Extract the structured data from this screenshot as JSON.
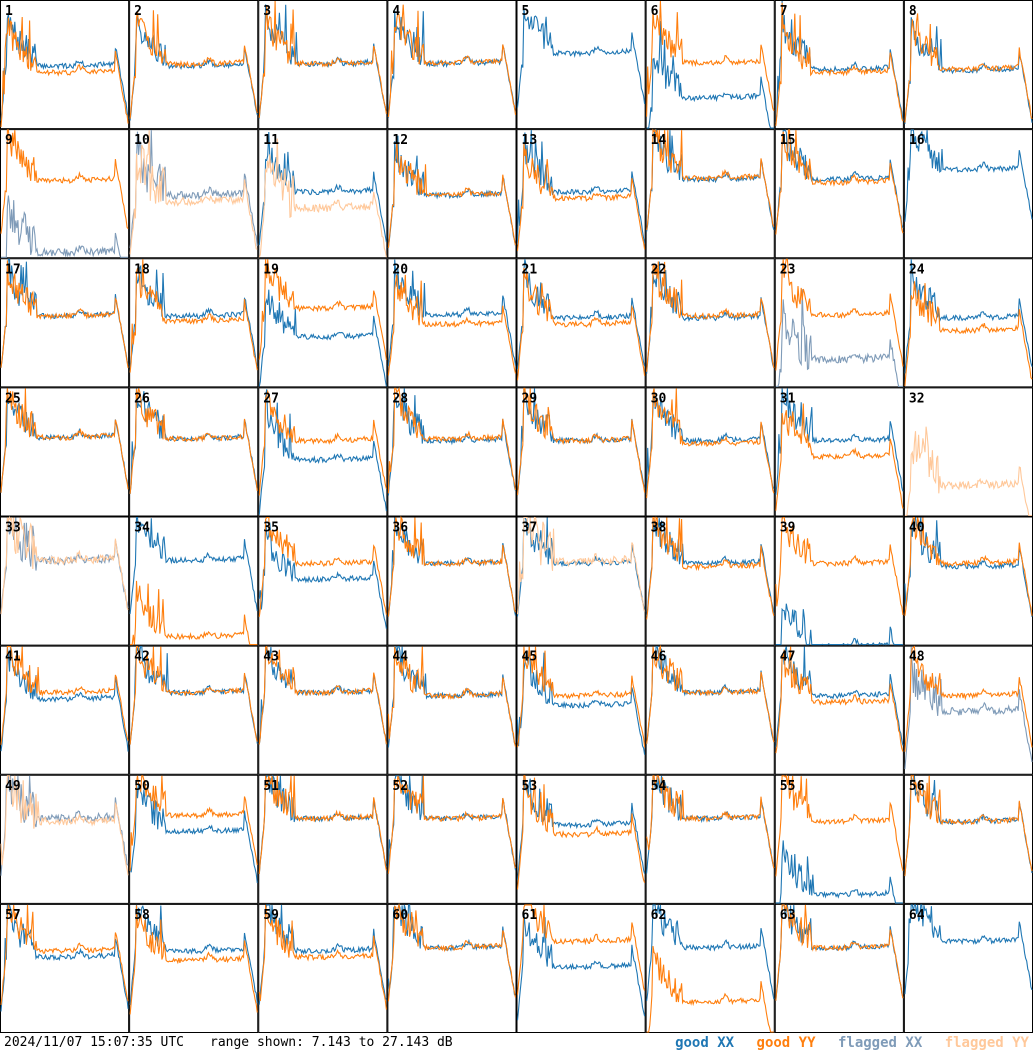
{
  "timestamp": "2024/11/07 15:07:35 UTC",
  "range_text": "range shown: 7.143 to 27.143 dB",
  "legend": {
    "good_xx": "good XX",
    "good_yy": "good YY",
    "flagged_xx": "flagged XX",
    "flagged_yy": "flagged YY"
  },
  "colors": {
    "good_xx": "#1f77b4",
    "good_yy": "#ff7f0e",
    "flagged_xx": "#7f9bb8",
    "flagged_yy": "#ffc89a",
    "frame": "#000000",
    "background": "#ffffff"
  },
  "chart_data": {
    "type": "line",
    "layout": "8x8 grid of small-multiple spectra",
    "ylim_db": [
      7.143,
      27.143
    ],
    "series": [
      "XX",
      "YY"
    ],
    "panels": [
      {
        "id": "1",
        "xx": "good",
        "yy": "good",
        "xx_level_db": 17.5,
        "yy_level_db": 16.5
      },
      {
        "id": "2",
        "xx": "good",
        "yy": "good",
        "xx_level_db": 17.5,
        "yy_level_db": 17.8
      },
      {
        "id": "3",
        "xx": "good",
        "yy": "good",
        "xx_level_db": 17.8,
        "yy_level_db": 17.9
      },
      {
        "id": "4",
        "xx": "good",
        "yy": "good",
        "xx_level_db": 17.9,
        "yy_level_db": 18.0
      },
      {
        "id": "5",
        "xx": "good",
        "yy": "absent",
        "xx_level_db": 19.5
      },
      {
        "id": "6",
        "xx": "good",
        "yy": "good",
        "xx_level_db": 12.5,
        "yy_level_db": 18.0
      },
      {
        "id": "7",
        "xx": "good",
        "yy": "good",
        "xx_level_db": 17.0,
        "yy_level_db": 16.5
      },
      {
        "id": "8",
        "xx": "good",
        "yy": "good",
        "xx_level_db": 16.8,
        "yy_level_db": 17.0
      },
      {
        "id": "9",
        "xx": "flagged",
        "yy": "good",
        "xx_level_db": 8.5,
        "yy_level_db": 19.8
      },
      {
        "id": "10",
        "xx": "flagged",
        "yy": "flagged",
        "xx_level_db": 17.5,
        "yy_level_db": 16.5
      },
      {
        "id": "11",
        "xx": "good",
        "yy": "flagged",
        "xx_level_db": 18.0,
        "yy_level_db": 15.5
      },
      {
        "id": "12",
        "xx": "good",
        "yy": "good",
        "xx_level_db": 17.5,
        "yy_level_db": 17.5
      },
      {
        "id": "13",
        "xx": "good",
        "yy": "good",
        "xx_level_db": 18.0,
        "yy_level_db": 17.0
      },
      {
        "id": "14",
        "xx": "good",
        "yy": "good",
        "xx_level_db": 20.0,
        "yy_level_db": 20.2
      },
      {
        "id": "15",
        "xx": "good",
        "yy": "good",
        "xx_level_db": 20.0,
        "yy_level_db": 19.5
      },
      {
        "id": "16",
        "xx": "good",
        "yy": "absent",
        "xx_level_db": 21.5
      },
      {
        "id": "17",
        "xx": "good",
        "yy": "good",
        "xx_level_db": 18.8,
        "yy_level_db": 18.8
      },
      {
        "id": "18",
        "xx": "good",
        "yy": "good",
        "xx_level_db": 18.8,
        "yy_level_db": 18.0
      },
      {
        "id": "19",
        "xx": "good",
        "yy": "good",
        "xx_level_db": 15.5,
        "yy_level_db": 20.0
      },
      {
        "id": "20",
        "xx": "good",
        "yy": "good",
        "xx_level_db": 19.0,
        "yy_level_db": 17.5
      },
      {
        "id": "21",
        "xx": "good",
        "yy": "good",
        "xx_level_db": 18.5,
        "yy_level_db": 17.5
      },
      {
        "id": "22",
        "xx": "good",
        "yy": "good",
        "xx_level_db": 18.5,
        "yy_level_db": 18.8
      },
      {
        "id": "23",
        "xx": "flagged",
        "yy": "good",
        "xx_level_db": 12.0,
        "yy_level_db": 19.0
      },
      {
        "id": "24",
        "xx": "good",
        "yy": "good",
        "xx_level_db": 18.5,
        "yy_level_db": 16.5
      },
      {
        "id": "25",
        "xx": "good",
        "yy": "good",
        "xx_level_db": 20.0,
        "yy_level_db": 20.0
      },
      {
        "id": "26",
        "xx": "good",
        "yy": "good",
        "xx_level_db": 19.8,
        "yy_level_db": 19.8
      },
      {
        "id": "27",
        "xx": "good",
        "yy": "good",
        "xx_level_db": 16.5,
        "yy_level_db": 19.5
      },
      {
        "id": "28",
        "xx": "good",
        "yy": "good",
        "xx_level_db": 19.5,
        "yy_level_db": 19.8
      },
      {
        "id": "29",
        "xx": "good",
        "yy": "good",
        "xx_level_db": 19.5,
        "yy_level_db": 19.5
      },
      {
        "id": "30",
        "xx": "good",
        "yy": "good",
        "xx_level_db": 19.5,
        "yy_level_db": 19.0
      },
      {
        "id": "31",
        "xx": "good",
        "yy": "good",
        "xx_level_db": 19.5,
        "yy_level_db": 17.0
      },
      {
        "id": "32",
        "xx": "absent",
        "yy": "flagged",
        "yy_level_db": 12.5
      },
      {
        "id": "33",
        "xx": "flagged",
        "yy": "flagged",
        "xx_level_db": 21.0,
        "yy_level_db": 21.0
      },
      {
        "id": "34",
        "xx": "good",
        "yy": "good",
        "xx_level_db": 21.0,
        "yy_level_db": 9.0
      },
      {
        "id": "35",
        "xx": "good",
        "yy": "good",
        "xx_level_db": 18.0,
        "yy_level_db": 20.5
      },
      {
        "id": "36",
        "xx": "good",
        "yy": "good",
        "xx_level_db": 20.5,
        "yy_level_db": 20.5
      },
      {
        "id": "37",
        "xx": "good",
        "yy": "flagged",
        "xx_level_db": 20.5,
        "yy_level_db": 20.8
      },
      {
        "id": "38",
        "xx": "good",
        "yy": "good",
        "xx_level_db": 20.5,
        "yy_level_db": 20.0
      },
      {
        "id": "39",
        "xx": "good",
        "yy": "good",
        "xx_level_db": 7.5,
        "yy_level_db": 20.5
      },
      {
        "id": "40",
        "xx": "good",
        "yy": "good",
        "xx_level_db": 20.0,
        "yy_level_db": 20.5
      },
      {
        "id": "41",
        "xx": "good",
        "yy": "good",
        "xx_level_db": 19.5,
        "yy_level_db": 20.5
      },
      {
        "id": "42",
        "xx": "good",
        "yy": "good",
        "xx_level_db": 20.5,
        "yy_level_db": 20.5
      },
      {
        "id": "43",
        "xx": "good",
        "yy": "good",
        "xx_level_db": 20.5,
        "yy_level_db": 20.5
      },
      {
        "id": "44",
        "xx": "good",
        "yy": "good",
        "xx_level_db": 20.0,
        "yy_level_db": 20.0
      },
      {
        "id": "45",
        "xx": "good",
        "yy": "good",
        "xx_level_db": 18.5,
        "yy_level_db": 20.0
      },
      {
        "id": "46",
        "xx": "good",
        "yy": "good",
        "xx_level_db": 20.5,
        "yy_level_db": 20.5
      },
      {
        "id": "47",
        "xx": "good",
        "yy": "good",
        "xx_level_db": 20.0,
        "yy_level_db": 19.0
      },
      {
        "id": "48",
        "xx": "flagged",
        "yy": "good",
        "xx_level_db": 17.5,
        "yy_level_db": 20.0
      },
      {
        "id": "49",
        "xx": "flagged",
        "yy": "flagged",
        "xx_level_db": 21.0,
        "yy_level_db": 20.5
      },
      {
        "id": "50",
        "xx": "good",
        "yy": "good",
        "xx_level_db": 19.0,
        "yy_level_db": 21.5
      },
      {
        "id": "51",
        "xx": "good",
        "yy": "good",
        "xx_level_db": 21.0,
        "yy_level_db": 21.0
      },
      {
        "id": "52",
        "xx": "good",
        "yy": "good",
        "xx_level_db": 21.0,
        "yy_level_db": 21.0
      },
      {
        "id": "53",
        "xx": "good",
        "yy": "good",
        "xx_level_db": 20.0,
        "yy_level_db": 18.5
      },
      {
        "id": "54",
        "xx": "good",
        "yy": "good",
        "xx_level_db": 21.0,
        "yy_level_db": 21.0
      },
      {
        "id": "55",
        "xx": "good",
        "yy": "good",
        "xx_level_db": 9.0,
        "yy_level_db": 20.5
      },
      {
        "id": "56",
        "xx": "good",
        "yy": "good",
        "xx_level_db": 20.5,
        "yy_level_db": 20.5
      },
      {
        "id": "57",
        "xx": "good",
        "yy": "good",
        "xx_level_db": 19.5,
        "yy_level_db": 20.5
      },
      {
        "id": "58",
        "xx": "good",
        "yy": "good",
        "xx_level_db": 20.5,
        "yy_level_db": 19.0
      },
      {
        "id": "59",
        "xx": "good",
        "yy": "good",
        "xx_level_db": 20.5,
        "yy_level_db": 19.5
      },
      {
        "id": "60",
        "xx": "good",
        "yy": "good",
        "xx_level_db": 21.0,
        "yy_level_db": 21.0
      },
      {
        "id": "61",
        "xx": "good",
        "yy": "good",
        "xx_level_db": 18.0,
        "yy_level_db": 22.0
      },
      {
        "id": "62",
        "xx": "good",
        "yy": "good",
        "xx_level_db": 21.0,
        "yy_level_db": 12.5
      },
      {
        "id": "63",
        "xx": "good",
        "yy": "good",
        "xx_level_db": 21.0,
        "yy_level_db": 21.0
      },
      {
        "id": "64",
        "xx": "good",
        "yy": "absent",
        "xx_level_db": 22.0
      }
    ]
  }
}
